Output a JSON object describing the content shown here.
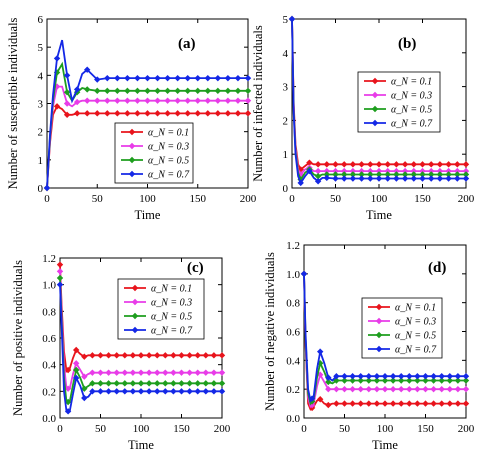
{
  "colors": {
    "alpha_0.1": "#e8141c",
    "alpha_0.3": "#e83ce8",
    "alpha_0.5": "#1e9e1e",
    "alpha_0.7": "#1428e6"
  },
  "chart_data": [
    {
      "type": "line",
      "panel": "(a)",
      "xlabel": "Time",
      "ylabel": "Number of susceptible individuals",
      "xlim": [
        0,
        200
      ],
      "ylim": [
        0,
        6
      ],
      "xticks": [
        0,
        50,
        100,
        150,
        200
      ],
      "yticks": [
        0,
        1,
        2,
        3,
        4,
        5,
        6
      ],
      "legend": "bottom-right",
      "series": [
        {
          "name": "α_N = 0.1",
          "color_key": "alpha_0.1",
          "x": [
            0,
            3,
            6,
            10,
            15,
            20,
            25,
            30,
            35,
            40,
            50,
            60,
            80,
            100,
            120,
            140,
            160,
            180,
            200
          ],
          "values": [
            0,
            1.6,
            2.6,
            2.9,
            2.8,
            2.6,
            2.6,
            2.65,
            2.65,
            2.65,
            2.65,
            2.65,
            2.65,
            2.65,
            2.65,
            2.65,
            2.65,
            2.65,
            2.65
          ]
        },
        {
          "name": "α_N = 0.3",
          "color_key": "alpha_0.3",
          "x": [
            0,
            3,
            6,
            10,
            15,
            20,
            25,
            30,
            35,
            40,
            50,
            60,
            80,
            100,
            120,
            140,
            160,
            180,
            200
          ],
          "values": [
            0,
            1.7,
            2.9,
            3.6,
            3.6,
            3.0,
            2.9,
            3.05,
            3.1,
            3.1,
            3.1,
            3.1,
            3.1,
            3.1,
            3.1,
            3.1,
            3.1,
            3.1,
            3.1
          ]
        },
        {
          "name": "α_N = 0.5",
          "color_key": "alpha_0.5",
          "x": [
            0,
            3,
            6,
            10,
            15,
            20,
            25,
            30,
            35,
            40,
            50,
            60,
            80,
            100,
            120,
            140,
            160,
            180,
            200
          ],
          "values": [
            0,
            1.8,
            3.1,
            4.1,
            4.4,
            3.4,
            3.1,
            3.4,
            3.55,
            3.5,
            3.45,
            3.45,
            3.45,
            3.45,
            3.45,
            3.45,
            3.45,
            3.45,
            3.45
          ]
        },
        {
          "name": "α_N = 0.7",
          "color_key": "alpha_0.7",
          "x": [
            0,
            3,
            6,
            10,
            15,
            20,
            25,
            30,
            35,
            40,
            50,
            60,
            80,
            100,
            120,
            140,
            160,
            180,
            200
          ],
          "values": [
            0,
            1.9,
            3.3,
            4.6,
            5.25,
            4.0,
            3.1,
            3.5,
            4.05,
            4.2,
            3.85,
            3.9,
            3.9,
            3.9,
            3.9,
            3.9,
            3.9,
            3.9,
            3.9
          ]
        }
      ]
    },
    {
      "type": "line",
      "panel": "(b)",
      "xlabel": "Time",
      "ylabel": "Number of infected individuals",
      "xlim": [
        0,
        200
      ],
      "ylim": [
        0,
        5
      ],
      "xticks": [
        0,
        50,
        100,
        150,
        200
      ],
      "yticks": [
        0,
        1,
        2,
        3,
        4,
        5
      ],
      "legend": "center-right",
      "series": [
        {
          "name": "α_N = 0.1",
          "color_key": "alpha_0.1",
          "x": [
            0,
            2,
            4,
            7,
            10,
            15,
            20,
            25,
            30,
            35,
            40,
            50,
            60,
            80,
            100,
            120,
            140,
            160,
            180,
            200
          ],
          "values": [
            5,
            2.5,
            1.3,
            0.7,
            0.55,
            0.65,
            0.75,
            0.7,
            0.7,
            0.7,
            0.7,
            0.7,
            0.7,
            0.7,
            0.7,
            0.7,
            0.7,
            0.7,
            0.7,
            0.7
          ]
        },
        {
          "name": "α_N = 0.3",
          "color_key": "alpha_0.3",
          "x": [
            0,
            2,
            4,
            7,
            10,
            15,
            20,
            25,
            30,
            35,
            40,
            50,
            60,
            80,
            100,
            120,
            140,
            160,
            180,
            200
          ],
          "values": [
            5,
            2.4,
            1.2,
            0.55,
            0.4,
            0.55,
            0.6,
            0.5,
            0.5,
            0.5,
            0.5,
            0.5,
            0.5,
            0.5,
            0.5,
            0.5,
            0.5,
            0.5,
            0.5,
            0.5
          ]
        },
        {
          "name": "α_N = 0.5",
          "color_key": "alpha_0.5",
          "x": [
            0,
            2,
            4,
            7,
            10,
            15,
            20,
            25,
            30,
            35,
            40,
            50,
            60,
            80,
            100,
            120,
            140,
            160,
            180,
            200
          ],
          "values": [
            5,
            2.3,
            1.1,
            0.45,
            0.25,
            0.45,
            0.55,
            0.4,
            0.35,
            0.4,
            0.4,
            0.4,
            0.4,
            0.4,
            0.4,
            0.4,
            0.4,
            0.4,
            0.4,
            0.4
          ]
        },
        {
          "name": "α_N = 0.7",
          "color_key": "alpha_0.7",
          "x": [
            0,
            2,
            4,
            7,
            10,
            15,
            20,
            25,
            30,
            35,
            40,
            50,
            60,
            80,
            100,
            120,
            140,
            160,
            180,
            200
          ],
          "values": [
            5,
            2.2,
            1.0,
            0.35,
            0.15,
            0.35,
            0.5,
            0.3,
            0.2,
            0.3,
            0.3,
            0.28,
            0.28,
            0.28,
            0.28,
            0.28,
            0.28,
            0.28,
            0.28,
            0.28
          ]
        }
      ]
    },
    {
      "type": "line",
      "panel": "(c)",
      "xlabel": "Time",
      "ylabel": "Number of positive individuals",
      "xlim": [
        0,
        200
      ],
      "ylim": [
        0,
        1.2
      ],
      "xticks": [
        0,
        50,
        100,
        150,
        200
      ],
      "yticks": [
        0,
        0.2,
        0.4,
        0.6,
        0.8,
        1.0,
        1.2
      ],
      "legend": "top-right",
      "series": [
        {
          "name": "α_N = 0.1",
          "color_key": "alpha_0.1",
          "x": [
            0,
            2,
            5,
            8,
            12,
            16,
            20,
            25,
            30,
            35,
            40,
            50,
            60,
            80,
            100,
            120,
            140,
            160,
            180,
            200
          ],
          "values": [
            1.15,
            0.85,
            0.5,
            0.35,
            0.37,
            0.45,
            0.51,
            0.48,
            0.46,
            0.47,
            0.47,
            0.47,
            0.47,
            0.47,
            0.47,
            0.47,
            0.47,
            0.47,
            0.47,
            0.47
          ]
        },
        {
          "name": "α_N = 0.3",
          "color_key": "alpha_0.3",
          "x": [
            0,
            2,
            5,
            8,
            12,
            16,
            20,
            25,
            30,
            35,
            40,
            50,
            60,
            80,
            100,
            120,
            140,
            160,
            180,
            200
          ],
          "values": [
            1.1,
            0.8,
            0.4,
            0.22,
            0.22,
            0.33,
            0.41,
            0.36,
            0.31,
            0.33,
            0.34,
            0.34,
            0.34,
            0.34,
            0.34,
            0.34,
            0.34,
            0.34,
            0.34,
            0.34
          ]
        },
        {
          "name": "α_N = 0.5",
          "color_key": "alpha_0.5",
          "x": [
            0,
            2,
            5,
            8,
            12,
            16,
            20,
            25,
            30,
            35,
            40,
            50,
            60,
            80,
            100,
            120,
            140,
            160,
            180,
            200
          ],
          "values": [
            1.05,
            0.75,
            0.3,
            0.12,
            0.12,
            0.25,
            0.36,
            0.3,
            0.22,
            0.24,
            0.26,
            0.26,
            0.26,
            0.26,
            0.26,
            0.26,
            0.26,
            0.26,
            0.26,
            0.26
          ]
        },
        {
          "name": "α_N = 0.7",
          "color_key": "alpha_0.7",
          "x": [
            0,
            2,
            5,
            8,
            12,
            16,
            20,
            25,
            30,
            35,
            40,
            50,
            60,
            80,
            100,
            120,
            140,
            160,
            180,
            200
          ],
          "values": [
            1.0,
            0.7,
            0.2,
            0.05,
            0.05,
            0.18,
            0.3,
            0.24,
            0.15,
            0.16,
            0.2,
            0.2,
            0.2,
            0.2,
            0.2,
            0.2,
            0.2,
            0.2,
            0.2,
            0.2
          ]
        }
      ]
    },
    {
      "type": "line",
      "panel": "(d)",
      "xlabel": "Time",
      "ylabel": "Number of negative individuals",
      "xlim": [
        0,
        200
      ],
      "ylim": [
        0,
        1.2
      ],
      "xticks": [
        0,
        50,
        100,
        150,
        200
      ],
      "yticks": [
        0,
        0.2,
        0.4,
        0.6,
        0.8,
        1.0,
        1.2
      ],
      "legend": "center-right",
      "series": [
        {
          "name": "α_N = 0.1",
          "color_key": "alpha_0.1",
          "x": [
            0,
            2,
            5,
            8,
            12,
            16,
            20,
            25,
            30,
            35,
            40,
            50,
            60,
            80,
            100,
            120,
            140,
            160,
            180,
            200
          ],
          "values": [
            1.0,
            0.5,
            0.1,
            0.06,
            0.08,
            0.12,
            0.13,
            0.1,
            0.09,
            0.1,
            0.1,
            0.1,
            0.1,
            0.1,
            0.1,
            0.1,
            0.1,
            0.1,
            0.1,
            0.1
          ]
        },
        {
          "name": "α_N = 0.3",
          "color_key": "alpha_0.3",
          "x": [
            0,
            2,
            5,
            8,
            12,
            16,
            20,
            25,
            30,
            35,
            40,
            50,
            60,
            80,
            100,
            120,
            140,
            160,
            180,
            200
          ],
          "values": [
            1.0,
            0.52,
            0.14,
            0.08,
            0.1,
            0.22,
            0.3,
            0.25,
            0.2,
            0.2,
            0.2,
            0.2,
            0.2,
            0.2,
            0.2,
            0.2,
            0.2,
            0.2,
            0.2,
            0.2
          ]
        },
        {
          "name": "α_N = 0.5",
          "color_key": "alpha_0.5",
          "x": [
            0,
            2,
            5,
            8,
            12,
            16,
            20,
            25,
            30,
            35,
            40,
            50,
            60,
            80,
            100,
            120,
            140,
            160,
            180,
            200
          ],
          "values": [
            1.0,
            0.55,
            0.17,
            0.1,
            0.13,
            0.28,
            0.38,
            0.32,
            0.25,
            0.24,
            0.26,
            0.26,
            0.26,
            0.26,
            0.26,
            0.26,
            0.26,
            0.26,
            0.26,
            0.26
          ]
        },
        {
          "name": "α_N = 0.7",
          "color_key": "alpha_0.7",
          "x": [
            0,
            2,
            5,
            8,
            12,
            16,
            20,
            25,
            30,
            35,
            40,
            50,
            60,
            80,
            100,
            120,
            140,
            160,
            180,
            200
          ],
          "values": [
            1.0,
            0.58,
            0.2,
            0.12,
            0.15,
            0.34,
            0.46,
            0.38,
            0.28,
            0.26,
            0.29,
            0.29,
            0.29,
            0.29,
            0.29,
            0.29,
            0.29,
            0.29,
            0.29,
            0.29
          ]
        }
      ]
    }
  ]
}
